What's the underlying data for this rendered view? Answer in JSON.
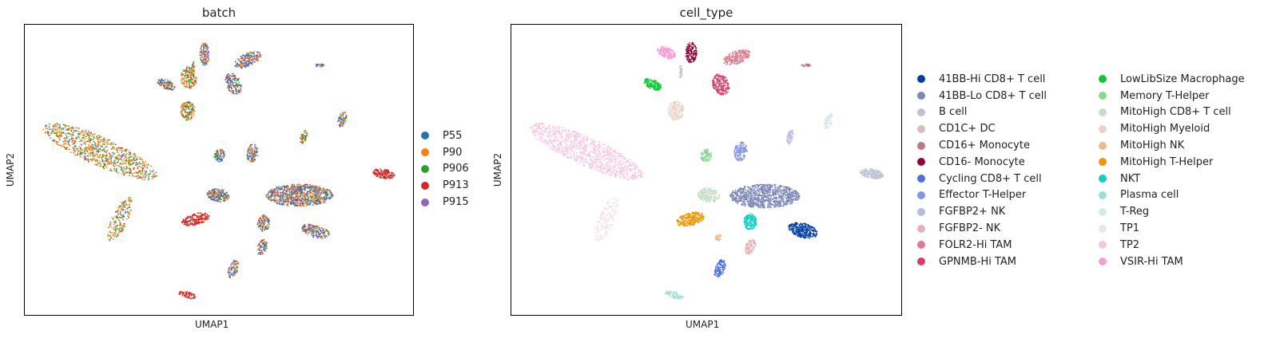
{
  "chart_data": [
    {
      "type": "scatter",
      "title": "batch",
      "xlabel": "UMAP1",
      "ylabel": "UMAP2",
      "grid": false,
      "ticks": false,
      "legend": {
        "placement": "right",
        "entries": [
          {
            "label": "P55",
            "color": "#1f77b4"
          },
          {
            "label": "P90",
            "color": "#ff7f0e"
          },
          {
            "label": "P906",
            "color": "#2ca02c"
          },
          {
            "label": "P913",
            "color": "#d62728"
          },
          {
            "label": "P915",
            "color": "#9467bd"
          }
        ]
      }
    },
    {
      "type": "scatter",
      "title": "cell_type",
      "xlabel": "UMAP1",
      "ylabel": "UMAP2",
      "grid": false,
      "ticks": false,
      "legend": {
        "placement": "right",
        "columns": 2,
        "entries": [
          {
            "label": "41BB-Hi CD8+ T cell",
            "color": "#023fa5"
          },
          {
            "label": "41BB-Lo CD8+ T cell",
            "color": "#7d87b9"
          },
          {
            "label": "B cell",
            "color": "#bec1d4"
          },
          {
            "label": "CD1C+ DC",
            "color": "#d6bcc0"
          },
          {
            "label": "CD16+ Monocyte",
            "color": "#bb7784"
          },
          {
            "label": "CD16- Monocyte",
            "color": "#8e063b"
          },
          {
            "label": "Cycling CD8+ T cell",
            "color": "#4a6fe3"
          },
          {
            "label": "Effector T-Helper",
            "color": "#8595e1"
          },
          {
            "label": "FGFBP2+ NK",
            "color": "#b5bbe3"
          },
          {
            "label": "FGFBP2- NK",
            "color": "#e6afb9"
          },
          {
            "label": "FOLR2-Hi TAM",
            "color": "#e07b91"
          },
          {
            "label": "GPNMB-Hi TAM",
            "color": "#d33f6a"
          },
          {
            "label": "LowLibSize Macrophage",
            "color": "#11c638"
          },
          {
            "label": "Memory T-Helper",
            "color": "#8dd593"
          },
          {
            "label": "MitoHigh CD8+ T cell",
            "color": "#c6dec7"
          },
          {
            "label": "MitoHigh Myeloid",
            "color": "#ead3c6"
          },
          {
            "label": "MitoHigh NK",
            "color": "#f0b98d"
          },
          {
            "label": "MitoHigh T-Helper",
            "color": "#ef9708"
          },
          {
            "label": "NKT",
            "color": "#0fcfc0"
          },
          {
            "label": "Plasma cell",
            "color": "#9cded6"
          },
          {
            "label": "T-Reg",
            "color": "#d5eae7"
          },
          {
            "label": "TP1",
            "color": "#f3e1eb"
          },
          {
            "label": "TP2",
            "color": "#f6c4e1"
          },
          {
            "label": "VSIR-Hi TAM",
            "color": "#f79cd4"
          }
        ]
      }
    }
  ]
}
